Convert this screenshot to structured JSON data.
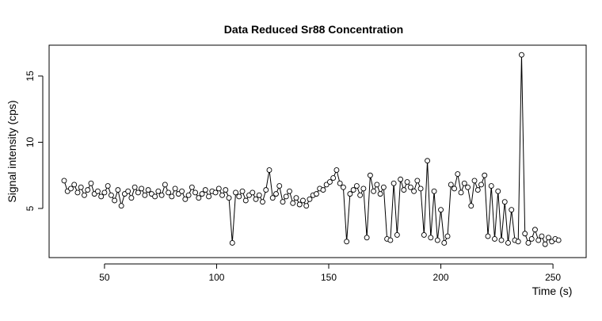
{
  "chart_data": {
    "type": "line",
    "title": "Data Reduced Sr88 Concentration",
    "x_label": "Time (s)",
    "y_label": "Signal intensity (cps)",
    "x": [
      32,
      33.5,
      35,
      36.5,
      38,
      39.5,
      41,
      42.5,
      44,
      45.5,
      47,
      48.5,
      50,
      51.5,
      53,
      54.5,
      56,
      57.5,
      59,
      60.5,
      62,
      63.5,
      65,
      66.5,
      68,
      69.5,
      71,
      72.5,
      74,
      75.5,
      77,
      78.5,
      80,
      81.5,
      83,
      84.5,
      86,
      87.5,
      89,
      90.5,
      92,
      93.5,
      95,
      96.5,
      98,
      99.5,
      101,
      102.5,
      104,
      105.5,
      107,
      108.5,
      110,
      111.5,
      113,
      114.5,
      116,
      117.5,
      119,
      120.5,
      122,
      123.5,
      125,
      126.5,
      128,
      129.5,
      131,
      132.5,
      134,
      135.5,
      137,
      138.5,
      140,
      141.5,
      143,
      144.5,
      146,
      147.5,
      149,
      150.5,
      152,
      153.5,
      155,
      156.5,
      158,
      159.5,
      161,
      162.5,
      164,
      165.5,
      167,
      168.5,
      170,
      171.5,
      173,
      174.5,
      176,
      177.5,
      179,
      180.5,
      182,
      183.5,
      185,
      186.5,
      188,
      189.5,
      191,
      192.5,
      194,
      195.5,
      197,
      198.5,
      200,
      201.5,
      203,
      204.5,
      206,
      207.5,
      209,
      210.5,
      212,
      213.5,
      215,
      216.5,
      218,
      219.5,
      221,
      222.5,
      224,
      225.5,
      227,
      228.5,
      230,
      231.5,
      233,
      234.5,
      236,
      237.5,
      239,
      240.5,
      242,
      243.5,
      245,
      246.5,
      248,
      249.5,
      251,
      252.5
    ],
    "values": [
      7.1,
      6.3,
      6.5,
      6.8,
      6.2,
      6.6,
      6.0,
      6.4,
      6.9,
      6.1,
      6.3,
      5.9,
      6.2,
      6.7,
      6.0,
      5.6,
      6.4,
      5.2,
      6.1,
      6.3,
      5.8,
      6.6,
      6.2,
      6.5,
      6.0,
      6.4,
      6.1,
      5.9,
      6.3,
      6.0,
      6.8,
      6.2,
      5.9,
      6.5,
      6.1,
      6.3,
      5.7,
      6.0,
      6.6,
      6.2,
      5.8,
      6.1,
      6.4,
      5.9,
      6.3,
      6.2,
      6.5,
      6.0,
      6.4,
      5.8,
      2.4,
      6.2,
      5.9,
      6.3,
      5.6,
      6.0,
      6.2,
      5.7,
      6.0,
      5.5,
      6.4,
      7.9,
      5.8,
      6.1,
      6.7,
      5.5,
      5.9,
      6.3,
      5.4,
      5.8,
      5.3,
      5.6,
      5.2,
      5.7,
      6.0,
      6.1,
      6.5,
      6.4,
      6.8,
      7.0,
      7.3,
      7.9,
      6.9,
      6.6,
      2.5,
      6.1,
      6.4,
      6.7,
      6.0,
      6.5,
      2.8,
      7.5,
      6.3,
      6.8,
      6.1,
      6.6,
      2.7,
      2.6,
      6.9,
      3.0,
      7.2,
      6.4,
      7.0,
      6.6,
      6.3,
      7.1,
      6.5,
      3.0,
      8.6,
      2.8,
      6.3,
      2.6,
      4.9,
      2.4,
      2.9,
      6.8,
      6.5,
      7.6,
      6.2,
      6.9,
      6.6,
      5.2,
      7.1,
      6.4,
      6.8,
      7.5,
      2.9,
      6.7,
      2.7,
      6.3,
      2.6,
      5.5,
      2.4,
      4.9,
      2.6,
      2.5,
      16.6,
      3.1,
      2.4,
      2.7,
      3.4,
      2.6,
      2.9,
      2.3,
      2.8,
      2.5,
      2.7,
      2.6
    ],
    "color": "#000000",
    "xlim": [
      25.3,
      264.8
    ],
    "ylim": [
      1.29,
      17.33
    ],
    "xticks": [
      50,
      100,
      150,
      200,
      250
    ],
    "yticks": [
      5,
      10,
      15
    ]
  }
}
